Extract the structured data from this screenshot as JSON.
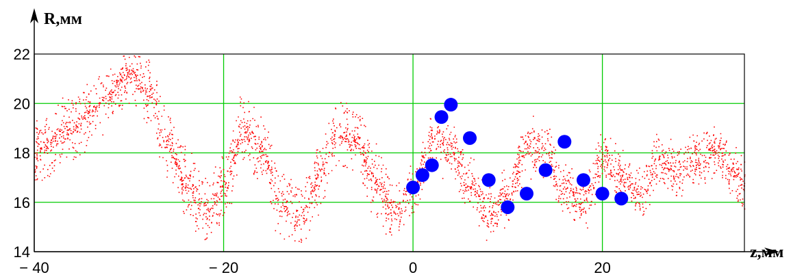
{
  "chart_data": {
    "type": "scatter",
    "title": "",
    "xlabel": "z,мм",
    "ylabel": "R,мм",
    "xlim": [
      -40,
      35
    ],
    "ylim": [
      14,
      22
    ],
    "grid": true,
    "x_ticks": [
      -40,
      -20,
      0,
      20
    ],
    "x_tick_labels": [
      "− 40",
      "− 20",
      "0",
      "20"
    ],
    "y_ticks": [
      14,
      16,
      18,
      20,
      22
    ],
    "y_tick_labels": [
      "14",
      "16",
      "18",
      "20",
      "22"
    ],
    "colors": {
      "cloud": "#ff0000",
      "markers": "#0000ff",
      "grid": "#00cc00",
      "frame": "#000000"
    },
    "series": [
      {
        "kind": "dense-scatter",
        "description_points": [
          [
            -40,
            18.0
          ],
          [
            -36,
            19.0
          ],
          [
            -33,
            20.0
          ],
          [
            -30,
            21.2
          ],
          [
            -28,
            20.5
          ],
          [
            -26,
            18.5
          ],
          [
            -24,
            16.8
          ],
          [
            -22,
            15.8
          ],
          [
            -20,
            16.5
          ],
          [
            -18,
            19.0
          ],
          [
            -16,
            18.2
          ],
          [
            -14,
            16.0
          ],
          [
            -12,
            15.3
          ],
          [
            -10,
            17.0
          ],
          [
            -8,
            18.8
          ],
          [
            -6,
            18.5
          ],
          [
            -4,
            16.8
          ],
          [
            -2,
            15.6
          ],
          [
            0,
            16.5
          ],
          [
            2,
            18.5
          ],
          [
            4,
            18.2
          ],
          [
            6,
            16.8
          ],
          [
            8,
            15.5
          ],
          [
            10,
            16.3
          ],
          [
            12,
            18.3
          ],
          [
            14,
            18.0
          ],
          [
            16,
            16.5
          ],
          [
            18,
            16.0
          ],
          [
            20,
            17.8
          ],
          [
            22,
            17.0
          ],
          [
            24,
            16.5
          ],
          [
            26,
            17.8
          ],
          [
            28,
            17.2
          ],
          [
            30,
            17.8
          ],
          [
            32,
            18.0
          ],
          [
            35,
            16.8
          ]
        ]
      },
      {
        "kind": "markers",
        "points": [
          [
            0,
            16.6
          ],
          [
            1,
            17.1
          ],
          [
            2,
            17.5
          ],
          [
            3,
            19.45
          ],
          [
            4,
            19.95
          ],
          [
            6,
            18.6
          ],
          [
            8,
            16.9
          ],
          [
            10,
            15.8
          ],
          [
            12,
            16.35
          ],
          [
            14,
            17.3
          ],
          [
            16,
            18.45
          ],
          [
            18,
            16.9
          ],
          [
            20,
            16.35
          ],
          [
            22,
            16.15
          ]
        ]
      }
    ]
  }
}
